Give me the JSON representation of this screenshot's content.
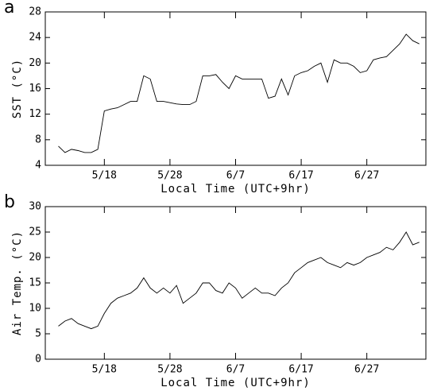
{
  "chart_data": [
    {
      "type": "line",
      "panel_label": "a",
      "ylabel": "SST (°C)",
      "xlabel": "Local Time (UTC+9hr)",
      "x": [
        "5/11",
        "5/12",
        "5/13",
        "5/14",
        "5/15",
        "5/16",
        "5/17",
        "5/18",
        "5/19",
        "5/20",
        "5/21",
        "5/22",
        "5/23",
        "5/24",
        "5/25",
        "5/26",
        "5/27",
        "5/28",
        "5/29",
        "5/30",
        "5/31",
        "6/1",
        "6/2",
        "6/3",
        "6/4",
        "6/5",
        "6/6",
        "6/7",
        "6/8",
        "6/9",
        "6/10",
        "6/11",
        "6/12",
        "6/13",
        "6/14",
        "6/15",
        "6/16",
        "6/17",
        "6/18",
        "6/19",
        "6/20",
        "6/21",
        "6/22",
        "6/23",
        "6/24",
        "6/25",
        "6/26",
        "6/27",
        "6/28",
        "6/29",
        "6/30",
        "7/1",
        "7/2",
        "7/3",
        "7/4",
        "7/5"
      ],
      "values": [
        7,
        6,
        6.5,
        6.3,
        6,
        6,
        6.5,
        12.5,
        12.8,
        13,
        13.5,
        14,
        14,
        18,
        17.5,
        14,
        14,
        13.8,
        13.6,
        13.5,
        13.5,
        14,
        18,
        18,
        18.2,
        17,
        16,
        18,
        17.5,
        17.5,
        17.5,
        17.5,
        14.5,
        14.8,
        17.5,
        15,
        18,
        18.5,
        18.8,
        19.5,
        20,
        17,
        20.5,
        20,
        20,
        19.5,
        18.5,
        18.8,
        20.5,
        20.8,
        21,
        22,
        23,
        24.5,
        23.5,
        23
      ],
      "color": "#000000",
      "xlim": [
        "5/9",
        "7/6"
      ],
      "xticks": [
        "5/18",
        "5/28",
        "6/7",
        "6/17",
        "6/27"
      ],
      "ylim": [
        4,
        28
      ],
      "yticks": [
        4,
        8,
        12,
        16,
        20,
        24,
        28
      ]
    },
    {
      "type": "line",
      "panel_label": "b",
      "ylabel": "Air Temp. (°C)",
      "xlabel": "Local Time (UTC+9hr)",
      "x": [
        "5/11",
        "5/12",
        "5/13",
        "5/14",
        "5/15",
        "5/16",
        "5/17",
        "5/18",
        "5/19",
        "5/20",
        "5/21",
        "5/22",
        "5/23",
        "5/24",
        "5/25",
        "5/26",
        "5/27",
        "5/28",
        "5/29",
        "5/30",
        "5/31",
        "6/1",
        "6/2",
        "6/3",
        "6/4",
        "6/5",
        "6/6",
        "6/7",
        "6/8",
        "6/9",
        "6/10",
        "6/11",
        "6/12",
        "6/13",
        "6/14",
        "6/15",
        "6/16",
        "6/17",
        "6/18",
        "6/19",
        "6/20",
        "6/21",
        "6/22",
        "6/23",
        "6/24",
        "6/25",
        "6/26",
        "6/27",
        "6/28",
        "6/29",
        "6/30",
        "7/1",
        "7/2",
        "7/3",
        "7/4",
        "7/5"
      ],
      "values": [
        6.5,
        7.5,
        8,
        7,
        6.5,
        6,
        6.5,
        9,
        11,
        12,
        12.5,
        13,
        14,
        16,
        14,
        13,
        14,
        13,
        14.5,
        11,
        12,
        13,
        15,
        15,
        13.5,
        13,
        15,
        14,
        12,
        13,
        14,
        13,
        13,
        12.5,
        14,
        15,
        17,
        18,
        19,
        19.5,
        20,
        19,
        18.5,
        18,
        19,
        18.5,
        19,
        20,
        20.5,
        21,
        22,
        21.5,
        23,
        25,
        22.5,
        23
      ],
      "color": "#000000",
      "xlim": [
        "5/9",
        "7/6"
      ],
      "xticks": [
        "5/18",
        "5/28",
        "6/7",
        "6/17",
        "6/27"
      ],
      "ylim": [
        0,
        30
      ],
      "yticks": [
        0,
        5,
        10,
        15,
        20,
        25,
        30
      ]
    }
  ]
}
